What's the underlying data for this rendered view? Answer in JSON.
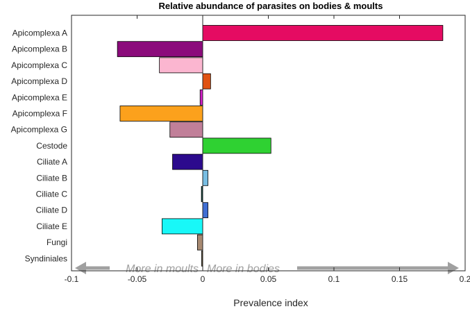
{
  "chart_data": {
    "type": "bar",
    "orientation": "horizontal",
    "title": "Relative abundance of parasites on bodies & moults",
    "xlabel": "Prevalence index",
    "ylabel": "",
    "xlim": [
      -0.1,
      0.2
    ],
    "xticks": [
      -0.1,
      -0.05,
      0,
      0.05,
      0.1,
      0.15,
      0.2
    ],
    "xtick_labels": [
      "-0.1",
      "-0.05",
      "0",
      "0.05",
      "0.1",
      "0.15",
      "0.2"
    ],
    "grid": false,
    "categories": [
      "Apicomplexa A",
      "Apicomplexa B",
      "Apicomplexa C",
      "Apicomplexa D",
      "Apicomplexa E",
      "Apicomplexa F",
      "Apicomplexa G",
      "Cestode",
      "Ciliate A",
      "Ciliate B",
      "Ciliate C",
      "Ciliate D",
      "Ciliate E",
      "Fungi",
      "Syndiniales"
    ],
    "values": [
      0.183,
      -0.065,
      -0.033,
      0.006,
      -0.002,
      -0.063,
      -0.025,
      0.052,
      -0.023,
      0.004,
      -0.001,
      0.004,
      -0.031,
      -0.004,
      -0.0008
    ],
    "colors": [
      "#e50b62",
      "#8b0b7b",
      "#fbb6d0",
      "#e05212",
      "#d21fc8",
      "#fca11c",
      "#c17f99",
      "#2fd132",
      "#2c0a8d",
      "#78bde2",
      "#0c4a3e",
      "#3f6ed3",
      "#18f8f8",
      "#a88a72",
      "#5c4a2c"
    ],
    "annotations": {
      "left_text": "More in moults",
      "right_text": "More in bodies",
      "arrow_color": "#a0a0a0"
    }
  }
}
